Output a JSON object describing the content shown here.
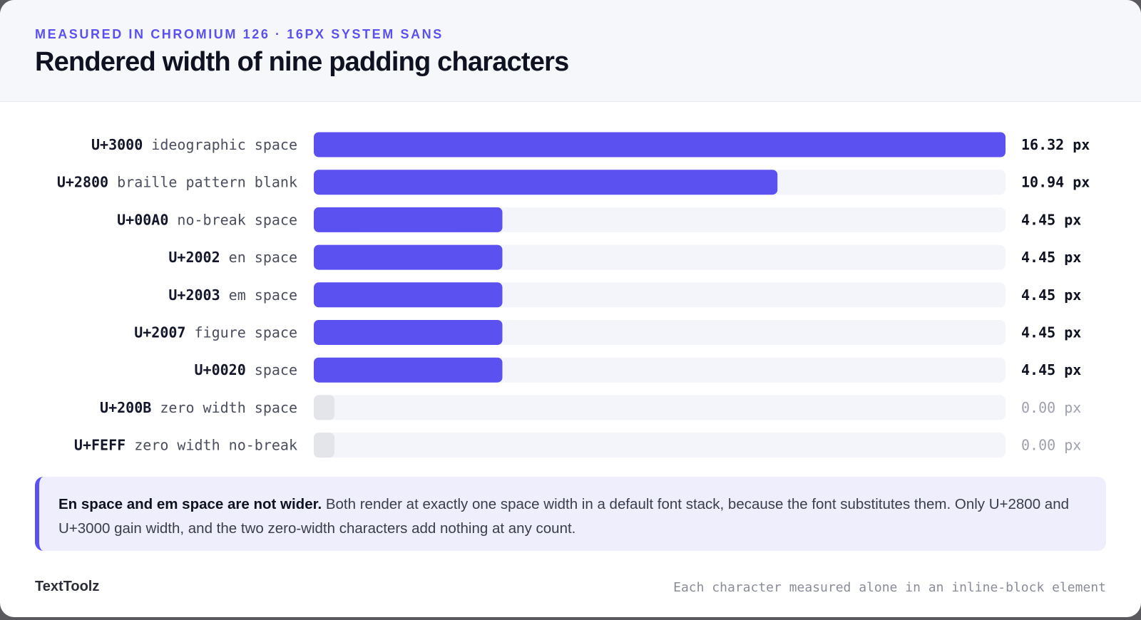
{
  "header": {
    "eyebrow": "MEASURED IN CHROMIUM 126 · 16PX SYSTEM SANS",
    "title": "Rendered width of nine padding characters"
  },
  "colors": {
    "accent": "#5b50f0",
    "bar": "#5b50f0",
    "track": "#f4f5fa",
    "zero_stub": "#e4e5ea",
    "value_strong": "#0f1220",
    "value_muted": "#9ea1ad"
  },
  "chart_data": {
    "type": "bar",
    "orientation": "horizontal",
    "unit": "px",
    "xlim": [
      0,
      16.32
    ],
    "grid": false,
    "categories": [
      {
        "code": "U+3000",
        "name": "ideographic space"
      },
      {
        "code": "U+2800",
        "name": "braille pattern blank"
      },
      {
        "code": "U+00A0",
        "name": "no-break space"
      },
      {
        "code": "U+2002",
        "name": "en space"
      },
      {
        "code": "U+2003",
        "name": "em space"
      },
      {
        "code": "U+2007",
        "name": "figure space"
      },
      {
        "code": "U+0020",
        "name": "space"
      },
      {
        "code": "U+200B",
        "name": "zero width space"
      },
      {
        "code": "U+FEFF",
        "name": "zero width no-break"
      }
    ],
    "values": [
      16.32,
      10.94,
      4.45,
      4.45,
      4.45,
      4.45,
      4.45,
      0.0,
      0.0
    ],
    "value_labels": [
      "16.32 px",
      "10.94 px",
      "4.45 px",
      "4.45 px",
      "4.45 px",
      "4.45 px",
      "4.45 px",
      "0.00 px",
      "0.00 px"
    ]
  },
  "callout": {
    "bold": "En space and em space are not wider.",
    "text": " Both render at exactly one space width in a default font stack, because the font substitutes them. Only U+2800 and U+3000 gain width, and the two zero-width characters add nothing at any count."
  },
  "footer": {
    "brand": "TextToolz",
    "note": "Each character measured alone in an inline-block element"
  }
}
